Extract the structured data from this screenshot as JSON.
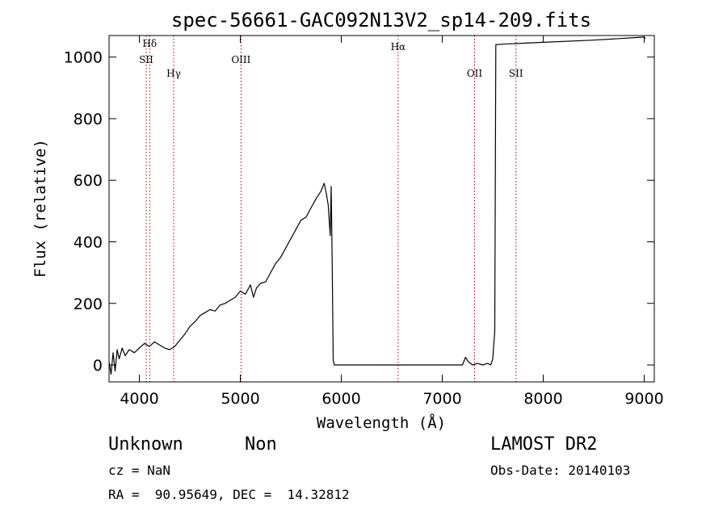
{
  "chart_data": {
    "type": "line",
    "title": "spec-56661-GAC092N13V2_sp14-209.fits",
    "xlabel": "Wavelength (Å)",
    "ylabel": "Flux (relative)",
    "xlim": [
      3700,
      9100
    ],
    "ylim": [
      -55,
      1070
    ],
    "x_ticks": [
      4000,
      5000,
      6000,
      7000,
      8000,
      9000
    ],
    "y_ticks": [
      0,
      200,
      400,
      600,
      800,
      1000
    ],
    "grid": false,
    "line_color": "#000000",
    "marker_color": "#aa0000",
    "series": [
      {
        "x": [
          3700,
          3720,
          3740,
          3760,
          3780,
          3800,
          3830,
          3860,
          3900,
          3950,
          4000,
          4050,
          4100,
          4150,
          4200,
          4250,
          4300,
          4350,
          4400,
          4450,
          4500,
          4550,
          4600,
          4650,
          4700,
          4750,
          4800,
          4850,
          4900,
          4950,
          5000,
          5050,
          5100,
          5130,
          5160,
          5200,
          5250,
          5300,
          5350,
          5400,
          5450,
          5500,
          5550,
          5600,
          5650,
          5700,
          5750,
          5800,
          5830,
          5850,
          5870,
          5890,
          5900,
          5910,
          5920,
          5930,
          5950,
          6000,
          6500,
          7000,
          7200,
          7230,
          7260,
          7300,
          7350,
          7400,
          7450,
          7480,
          7500,
          7520,
          7530,
          7600,
          8000,
          8500,
          9000,
          9010
        ],
        "y": [
          10,
          -30,
          40,
          -20,
          50,
          20,
          55,
          30,
          50,
          40,
          55,
          70,
          60,
          75,
          65,
          55,
          50,
          60,
          80,
          100,
          125,
          140,
          160,
          170,
          180,
          175,
          195,
          200,
          210,
          220,
          240,
          230,
          260,
          220,
          250,
          265,
          270,
          300,
          330,
          350,
          380,
          410,
          440,
          470,
          480,
          510,
          540,
          565,
          590,
          560,
          520,
          420,
          580,
          320,
          15,
          0,
          0,
          0,
          0,
          0,
          0,
          25,
          10,
          0,
          5,
          0,
          5,
          0,
          20,
          110,
          1040,
          1042,
          1048,
          1055,
          1065,
          1060
        ]
      }
    ],
    "lines": [
      {
        "label": "Hδ",
        "x": 4102
      },
      {
        "label": "SII",
        "x": 4068
      },
      {
        "label": "Hγ",
        "x": 4340
      },
      {
        "label": "OIII",
        "x": 5007
      },
      {
        "label": "Hα",
        "x": 6563
      },
      {
        "label": "OII",
        "x": 7320
      },
      {
        "label": "SII",
        "x": 7730
      }
    ]
  },
  "info": {
    "object_class": "Unknown",
    "subclass": "Non",
    "survey": "LAMOST DR2",
    "redshift": "cz = NaN",
    "obs_date": "Obs-Date: 20140103",
    "coordinates": "RA =  90.95649, DEC =  14.32812"
  }
}
